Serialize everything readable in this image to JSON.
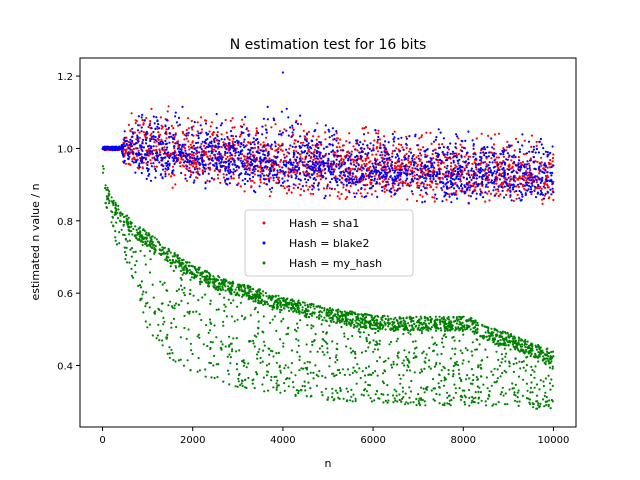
{
  "chart_data": {
    "type": "scatter",
    "title": "N estimation test for 16 bits",
    "xlabel": "n",
    "ylabel": "estimated n value / n",
    "xlim": [
      -500,
      10500
    ],
    "ylim": [
      0.23,
      1.25
    ],
    "xticks": [
      0,
      2000,
      4000,
      6000,
      8000,
      10000
    ],
    "yticks": [
      0.4,
      0.6,
      0.8,
      1.0,
      1.2
    ],
    "ytick_labels": [
      "0.4",
      "0.6",
      "0.8",
      "1.0",
      "1.2"
    ],
    "grid": false,
    "legend_position": "center",
    "series": [
      {
        "name": "Hash = sha1",
        "color": "#ff0000",
        "x": [
          0,
          100,
          200,
          300,
          400,
          500,
          750,
          1000,
          1500,
          2000,
          2500,
          3000,
          3500,
          4000,
          4500,
          5000,
          5500,
          6000,
          6500,
          7000,
          7500,
          8000,
          8500,
          9000,
          9500,
          10000
        ],
        "y_mean": [
          1.0,
          1.0,
          1.0,
          1.0,
          1.0,
          1.0,
          1.0,
          1.0,
          0.995,
          0.99,
          0.98,
          0.975,
          0.97,
          0.965,
          0.96,
          0.955,
          0.95,
          0.945,
          0.94,
          0.94,
          0.935,
          0.93,
          0.93,
          0.925,
          0.925,
          0.92
        ],
        "y_min": [
          1.0,
          1.0,
          1.0,
          1.0,
          1.0,
          0.92,
          0.9,
          0.89,
          0.88,
          0.87,
          0.86,
          0.86,
          0.85,
          0.85,
          0.85,
          0.84,
          0.84,
          0.84,
          0.84,
          0.83,
          0.83,
          0.83,
          0.83,
          0.82,
          0.82,
          0.8
        ],
        "y_max": [
          1.0,
          1.0,
          1.0,
          1.0,
          1.0,
          1.1,
          1.12,
          1.14,
          1.13,
          1.15,
          1.12,
          1.11,
          1.1,
          1.1,
          1.1,
          1.09,
          1.09,
          1.08,
          1.08,
          1.08,
          1.07,
          1.07,
          1.07,
          1.06,
          1.06,
          1.05
        ]
      },
      {
        "name": "Hash = blake2",
        "color": "#0000ff",
        "x": [
          0,
          100,
          200,
          300,
          400,
          500,
          750,
          1000,
          1500,
          2000,
          2500,
          3000,
          3500,
          4000,
          4500,
          5000,
          5500,
          6000,
          6500,
          7000,
          7500,
          8000,
          8500,
          9000,
          9500,
          10000
        ],
        "y_mean": [
          1.0,
          1.0,
          1.0,
          1.0,
          1.0,
          1.0,
          1.0,
          0.995,
          0.99,
          0.985,
          0.98,
          0.975,
          0.97,
          0.965,
          0.96,
          0.955,
          0.95,
          0.945,
          0.94,
          0.94,
          0.935,
          0.93,
          0.93,
          0.925,
          0.92,
          0.92
        ],
        "y_min": [
          0.99,
          0.99,
          0.99,
          0.99,
          0.99,
          0.92,
          0.9,
          0.89,
          0.88,
          0.87,
          0.87,
          0.86,
          0.86,
          0.85,
          0.85,
          0.85,
          0.84,
          0.84,
          0.84,
          0.84,
          0.83,
          0.83,
          0.83,
          0.83,
          0.83,
          0.82
        ],
        "y_max": [
          1.0,
          1.0,
          1.0,
          1.0,
          1.0,
          1.08,
          1.11,
          1.12,
          1.13,
          1.12,
          1.11,
          1.1,
          1.1,
          1.21,
          1.09,
          1.09,
          1.09,
          1.08,
          1.08,
          1.08,
          1.07,
          1.07,
          1.07,
          1.06,
          1.06,
          1.06
        ]
      },
      {
        "name": "Hash = my_hash",
        "color": "#008000",
        "x": [
          0,
          50,
          100,
          200,
          300,
          500,
          750,
          1000,
          1500,
          2000,
          2500,
          3000,
          3500,
          4000,
          4500,
          5000,
          5500,
          6000,
          6500,
          7000,
          7500,
          8000,
          8100,
          8200,
          8500,
          9000,
          9500,
          10000
        ],
        "y_upper": [
          0.96,
          0.93,
          0.9,
          0.87,
          0.85,
          0.82,
          0.79,
          0.77,
          0.72,
          0.68,
          0.65,
          0.63,
          0.61,
          0.59,
          0.575,
          0.56,
          0.55,
          0.54,
          0.535,
          0.535,
          0.535,
          0.535,
          0.535,
          0.53,
          0.51,
          0.49,
          0.465,
          0.44
        ],
        "y_lower": [
          0.9,
          0.86,
          0.82,
          0.78,
          0.74,
          0.68,
          0.62,
          0.5,
          0.42,
          0.38,
          0.36,
          0.34,
          0.33,
          0.32,
          0.31,
          0.305,
          0.3,
          0.3,
          0.295,
          0.29,
          0.29,
          0.29,
          0.28,
          0.3,
          0.29,
          0.285,
          0.28,
          0.28
        ]
      }
    ]
  }
}
